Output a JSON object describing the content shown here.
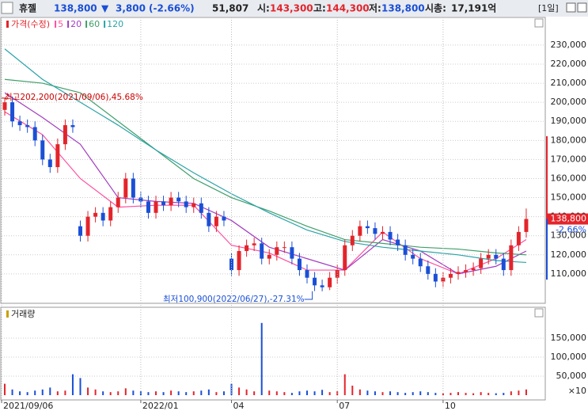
{
  "header": {
    "name": "휴젤",
    "price": "138,800",
    "arrow": "▼",
    "change": "3,800",
    "change_pct": "(-2.66%)",
    "volume": "51,807",
    "open_label": "시:",
    "open": "143,300",
    "high_label": "고:",
    "high": "144,300",
    "low_label": "저:",
    "low": "138,800",
    "cap_label": "시총:",
    "cap": "17,191억",
    "period": "[1일]"
  },
  "chart_data": [
    {
      "type": "candlestick",
      "legend": [
        "가격(수정)"
      ],
      "up_color": "#e3242b",
      "down_color": "#1a4fd6",
      "open": [
        196000,
        200000,
        190000,
        188000,
        187000,
        180000,
        170000,
        166000,
        178000,
        188000,
        135000,
        130000,
        140000,
        142000,
        138000,
        145000,
        150000,
        160000,
        150000,
        148000,
        142000,
        148000,
        146000,
        150000,
        148000,
        145000,
        147000,
        142000,
        135000,
        140000,
        118000,
        112000,
        122000,
        125000,
        126000,
        118000,
        120000,
        124000,
        124000,
        118000,
        112000,
        108000,
        104000,
        103000,
        108000,
        112000,
        125000,
        130000,
        135000,
        134000,
        131000,
        132000,
        128000,
        125000,
        120000,
        118000,
        114000,
        110000,
        106000,
        108000,
        110000,
        111000,
        112000,
        113000,
        118000,
        120000,
        118000,
        112000,
        125000,
        132000
      ],
      "high": [
        202200,
        203000,
        193000,
        191000,
        190000,
        183000,
        173000,
        181000,
        191000,
        191000,
        138000,
        143000,
        145000,
        145000,
        148000,
        153000,
        163000,
        163000,
        153000,
        151000,
        151000,
        151000,
        153000,
        153000,
        151000,
        150000,
        150000,
        145000,
        143000,
        143000,
        121000,
        125000,
        128000,
        129000,
        129000,
        123000,
        127000,
        127000,
        127000,
        121000,
        115000,
        111000,
        107000,
        111000,
        115000,
        128000,
        133000,
        138000,
        138000,
        137000,
        135000,
        135000,
        131000,
        128000,
        123000,
        121000,
        117000,
        113000,
        111000,
        113000,
        114000,
        115000,
        116000,
        121000,
        123000,
        123000,
        121000,
        128000,
        135000,
        144300
      ],
      "low": [
        193000,
        187000,
        185000,
        184000,
        177000,
        167000,
        163000,
        163000,
        175000,
        184000,
        127000,
        127000,
        137000,
        135000,
        135000,
        142000,
        147000,
        147000,
        145000,
        139000,
        139000,
        143000,
        143000,
        145000,
        142000,
        142000,
        139000,
        132000,
        132000,
        135000,
        109000,
        109000,
        119000,
        122000,
        115000,
        115000,
        117000,
        121000,
        115000,
        109000,
        105000,
        101000,
        100900,
        101500,
        105000,
        109000,
        122000,
        127000,
        131000,
        128000,
        128000,
        125000,
        122000,
        117000,
        115000,
        111000,
        107000,
        103000,
        103000,
        105000,
        107000,
        108000,
        109000,
        110000,
        115000,
        115000,
        109000,
        109000,
        122000,
        129000
      ],
      "close": [
        200000,
        190000,
        188000,
        187000,
        180000,
        170000,
        166000,
        178000,
        188000,
        187000,
        130000,
        140000,
        142000,
        138000,
        145000,
        150000,
        160000,
        150000,
        148000,
        142000,
        148000,
        146000,
        150000,
        148000,
        145000,
        147000,
        142000,
        135000,
        140000,
        138000,
        112000,
        122000,
        125000,
        126000,
        118000,
        120000,
        124000,
        124000,
        118000,
        112000,
        108000,
        104000,
        103000,
        108000,
        112000,
        125000,
        130000,
        135000,
        134000,
        131000,
        132000,
        128000,
        125000,
        120000,
        118000,
        114000,
        110000,
        106000,
        108000,
        110000,
        111000,
        112000,
        113000,
        118000,
        120000,
        118000,
        112000,
        125000,
        132000,
        138800
      ],
      "series": [
        {
          "name": "5",
          "color": "#ff4fa0",
          "x": [
            0,
            5,
            10,
            15,
            20,
            25,
            30,
            35,
            40,
            45,
            50,
            55,
            60,
            65,
            69
          ],
          "values": [
            195000,
            183000,
            160000,
            145000,
            146000,
            146000,
            125000,
            121000,
            112000,
            112000,
            132000,
            118000,
            110000,
            118000,
            128000
          ]
        },
        {
          "name": "20",
          "color": "#a23cc0",
          "x": [
            0,
            5,
            10,
            15,
            20,
            25,
            30,
            35,
            40,
            45,
            50,
            55,
            60,
            65,
            69
          ],
          "values": [
            205000,
            192000,
            178000,
            150000,
            148000,
            147000,
            138000,
            124000,
            118000,
            112000,
            128000,
            122000,
            110000,
            114000,
            122000
          ]
        },
        {
          "name": "60",
          "color": "#3f9f6a",
          "x": [
            0,
            5,
            10,
            15,
            20,
            25,
            30,
            35,
            40,
            45,
            50,
            55,
            60,
            65,
            69
          ],
          "values": [
            212000,
            210000,
            205000,
            190000,
            175000,
            160000,
            150000,
            143000,
            135000,
            128000,
            126000,
            124000,
            123000,
            121000,
            120000
          ]
        },
        {
          "name": "120",
          "color": "#2aa3a8",
          "x": [
            0,
            5,
            10,
            15,
            20,
            25,
            30,
            35,
            40,
            45,
            50,
            55,
            60,
            65,
            69
          ],
          "values": [
            228000,
            212000,
            200000,
            188000,
            175000,
            163000,
            152000,
            142000,
            133000,
            127000,
            124000,
            122000,
            120000,
            117000,
            116000
          ]
        }
      ],
      "ylim": [
        95000,
        244500
      ],
      "yticks": [
        {
          "value": 110000,
          "label": "110,000"
        },
        {
          "value": 120000,
          "label": "120,000"
        },
        {
          "value": 130000,
          "label": "130,000"
        },
        {
          "value": 140000,
          "label": "140,000"
        },
        {
          "value": 150000,
          "label": "150,000"
        },
        {
          "value": 160000,
          "label": "160,000"
        },
        {
          "value": 170000,
          "label": "170,000"
        },
        {
          "value": 180000,
          "label": "180,000"
        },
        {
          "value": 190000,
          "label": "190,000"
        },
        {
          "value": 200000,
          "label": "200,000"
        },
        {
          "value": 210000,
          "label": "210,000"
        },
        {
          "value": 220000,
          "label": "220,000"
        },
        {
          "value": 230000,
          "label": "230,000"
        }
      ],
      "grid": true,
      "last_label": "138,800",
      "last_change": "-2.66%",
      "annotations": [
        "최고202,200(2021/09/06),45.68%",
        "최저100,900(2022/06/27),-27.31%"
      ]
    },
    {
      "type": "bar",
      "legend": [
        "거래량"
      ],
      "categories": [
        "2021/09/06",
        null,
        null,
        null,
        null,
        null,
        null,
        null,
        null,
        null,
        null,
        null,
        null,
        null,
        null,
        null,
        null,
        null,
        "2022/01",
        null,
        null,
        null,
        null,
        null,
        null,
        null,
        null,
        null,
        null,
        null,
        "04",
        null,
        null,
        null,
        null,
        null,
        null,
        null,
        null,
        null,
        null,
        null,
        null,
        null,
        "07",
        null,
        null,
        null,
        null,
        null,
        null,
        null,
        null,
        null,
        null,
        null,
        null,
        null,
        "10",
        null,
        null,
        null,
        null,
        null,
        null,
        null,
        null,
        null,
        null,
        null
      ],
      "values": [
        30000,
        15000,
        10000,
        8000,
        12000,
        15000,
        20000,
        10000,
        12000,
        55000,
        45000,
        20000,
        15000,
        10000,
        8000,
        10000,
        18000,
        12000,
        10000,
        8000,
        10000,
        8000,
        12000,
        10000,
        8000,
        10000,
        12000,
        15000,
        8000,
        10000,
        30000,
        20000,
        15000,
        10000,
        190000,
        12000,
        10000,
        8000,
        6000,
        10000,
        12000,
        10000,
        14000,
        8000,
        10000,
        55000,
        25000,
        15000,
        12000,
        10000,
        8000,
        10000,
        8000,
        6000,
        8000,
        10000,
        8000,
        6000,
        5000,
        6000,
        8000,
        6000,
        5000,
        8000,
        6000,
        5000,
        6000,
        10000,
        12000,
        15000
      ],
      "ylim": [
        0,
        230000
      ],
      "yticks": [
        {
          "value": 50000,
          "label": "50,000"
        },
        {
          "value": 100000,
          "label": "100,000"
        },
        {
          "value": 150000,
          "label": "150,000"
        }
      ],
      "unit_label": "×10",
      "grid": true
    }
  ]
}
